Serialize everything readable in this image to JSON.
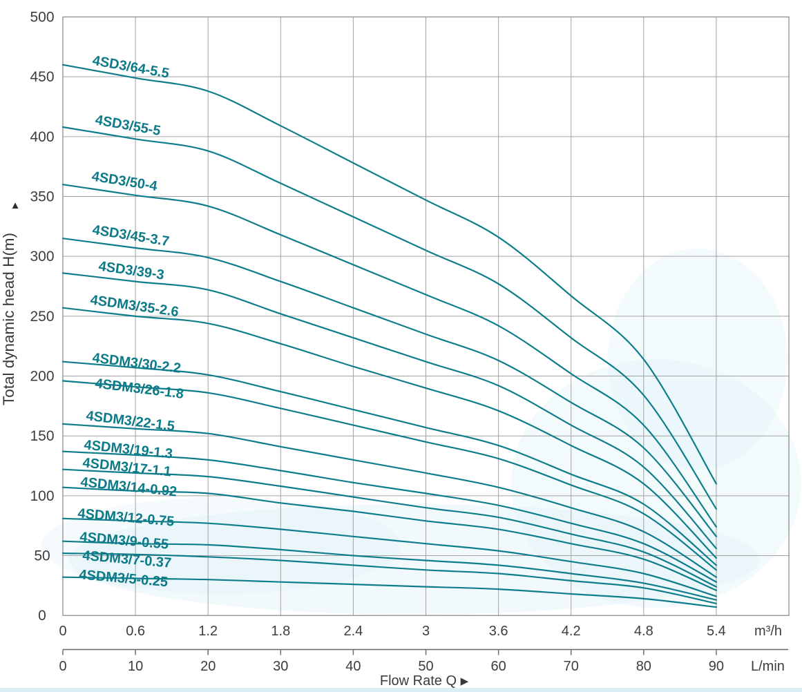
{
  "chart_data": {
    "type": "line",
    "title": "",
    "xlabel": "Flow Rate Q",
    "ylabel": "Total dynamic head H(m)",
    "x_axis_arrow": "▶",
    "y_axis_arrow": "▲",
    "x_unit_primary": "m³/h",
    "x_unit_secondary": "L/min",
    "xlim": [
      0,
      6.0
    ],
    "ylim": [
      0,
      500
    ],
    "grid": true,
    "x_ticks_primary_labels": [
      "0",
      "0.6",
      "1.2",
      "1.8",
      "2.4",
      "3",
      "3.6",
      "4.2",
      "4.8",
      "5.4"
    ],
    "x_ticks_primary_values": [
      0,
      0.6,
      1.2,
      1.8,
      2.4,
      3,
      3.6,
      4.2,
      4.8,
      5.4
    ],
    "x_ticks_secondary_labels": [
      "0",
      "10",
      "20",
      "30",
      "40",
      "50",
      "60",
      "70",
      "80",
      "90"
    ],
    "x_ticks_secondary_values": [
      0,
      10,
      20,
      30,
      40,
      50,
      60,
      70,
      80,
      90
    ],
    "y_ticks_values": [
      0,
      50,
      100,
      150,
      200,
      250,
      300,
      350,
      400,
      450,
      500
    ],
    "x": [
      0,
      0.6,
      1.2,
      1.8,
      2.4,
      3,
      3.6,
      4.2,
      4.8,
      5.4
    ],
    "series": [
      {
        "name": "4SD3/64-5.5",
        "values": [
          460,
          449,
          438,
          409,
          378,
          347,
          316,
          267,
          214,
          110
        ],
        "label": {
          "x": 133,
          "gap": 8,
          "angle": 10
        }
      },
      {
        "name": "4SD3/55-5",
        "values": [
          408,
          398,
          388,
          361,
          333,
          305,
          277,
          232,
          184,
          89
        ],
        "label": {
          "x": 137,
          "gap": 12,
          "angle": 10
        }
      },
      {
        "name": "4SD3/50-4",
        "values": [
          360,
          351,
          342,
          318,
          293,
          268,
          242,
          202,
          159,
          74
        ],
        "label": {
          "x": 132,
          "gap": 12,
          "angle": 9
        }
      },
      {
        "name": "4SD3/45-3.7",
        "values": [
          315,
          307,
          299,
          279,
          257,
          235,
          213,
          178,
          140,
          66
        ],
        "label": {
          "x": 133,
          "gap": 12,
          "angle": 9
        }
      },
      {
        "name": "4SD3/39-3",
        "values": [
          286,
          279,
          272,
          252,
          232,
          212,
          192,
          159,
          124,
          56
        ],
        "label": {
          "x": 142,
          "gap": 10,
          "angle": 8
        }
      },
      {
        "name": "4SDM3/35-2.6",
        "values": [
          257,
          250,
          244,
          227,
          208,
          190,
          171,
          142,
          110,
          48
        ],
        "label": {
          "x": 130,
          "gap": 10,
          "angle": 8
        }
      },
      {
        "name": "4SDM3/30-2.2",
        "values": [
          212,
          207,
          201,
          187,
          172,
          157,
          142,
          118,
          93,
          42
        ],
        "label": {
          "x": 133,
          "gap": 3,
          "angle": 7
        }
      },
      {
        "name": "4SDM3/26-1.8",
        "values": [
          196,
          191,
          186,
          173,
          159,
          145,
          131,
          109,
          85,
          38
        ],
        "label": {
          "x": 137,
          "gap": -6,
          "angle": 7
        }
      },
      {
        "name": "4SDM3/22-1.5",
        "values": [
          160,
          156,
          152,
          141,
          130,
          119,
          107,
          90,
          70,
          32
        ],
        "label": {
          "x": 124,
          "gap": 8,
          "angle": 7
        }
      },
      {
        "name": "4SDM3/19-1.3",
        "values": [
          137,
          134,
          130,
          121,
          111,
          102,
          92,
          77,
          60,
          28
        ],
        "label": {
          "x": 121,
          "gap": 5,
          "angle": 6
        }
      },
      {
        "name": "4SDM3/17-1.1",
        "values": [
          122,
          119,
          116,
          108,
          99,
          90,
          82,
          68,
          53,
          24
        ],
        "label": {
          "x": 119,
          "gap": 5,
          "angle": 6
        }
      },
      {
        "name": "4SDM3/14-0.92",
        "values": [
          107,
          104,
          102,
          94,
          87,
          79,
          72,
          60,
          47,
          21
        ],
        "label": {
          "x": 116,
          "gap": 3,
          "angle": 6
        }
      },
      {
        "name": "4SDM3/12-0.75",
        "values": [
          81,
          79,
          77,
          72,
          66,
          60,
          54,
          45,
          35,
          16
        ],
        "label": {
          "x": 112,
          "gap": 2,
          "angle": 5
        }
      },
      {
        "name": "4SDM3/9-0.55",
        "values": [
          62,
          60,
          59,
          55,
          50,
          46,
          42,
          35,
          27,
          13
        ],
        "label": {
          "x": 115,
          "gap": 1,
          "angle": 5
        }
      },
      {
        "name": "4SDM3/7-0.37",
        "values": [
          52,
          51,
          49,
          46,
          42,
          38,
          35,
          29,
          23,
          10
        ],
        "label": {
          "x": 119,
          "gap": -9,
          "angle": 5
        }
      },
      {
        "name": "4SDM3/5-0.25",
        "values": [
          32,
          31,
          30,
          28,
          26,
          24,
          22,
          18,
          14,
          7
        ],
        "label": {
          "x": 114,
          "gap": -2,
          "angle": 5
        }
      }
    ],
    "colors": {
      "curve": "#0e7d8b",
      "curve_label": "#0d7a88",
      "grid": "#a2a2a2",
      "frame": "#8d8d8d",
      "tick_text": "#3d3d3d",
      "axis_title_text": "#3a3a3a",
      "axis_line": "#666666",
      "wash": "#d9eff7",
      "bottom_strip": "#d3e9f4",
      "background": "#ffffff"
    }
  }
}
